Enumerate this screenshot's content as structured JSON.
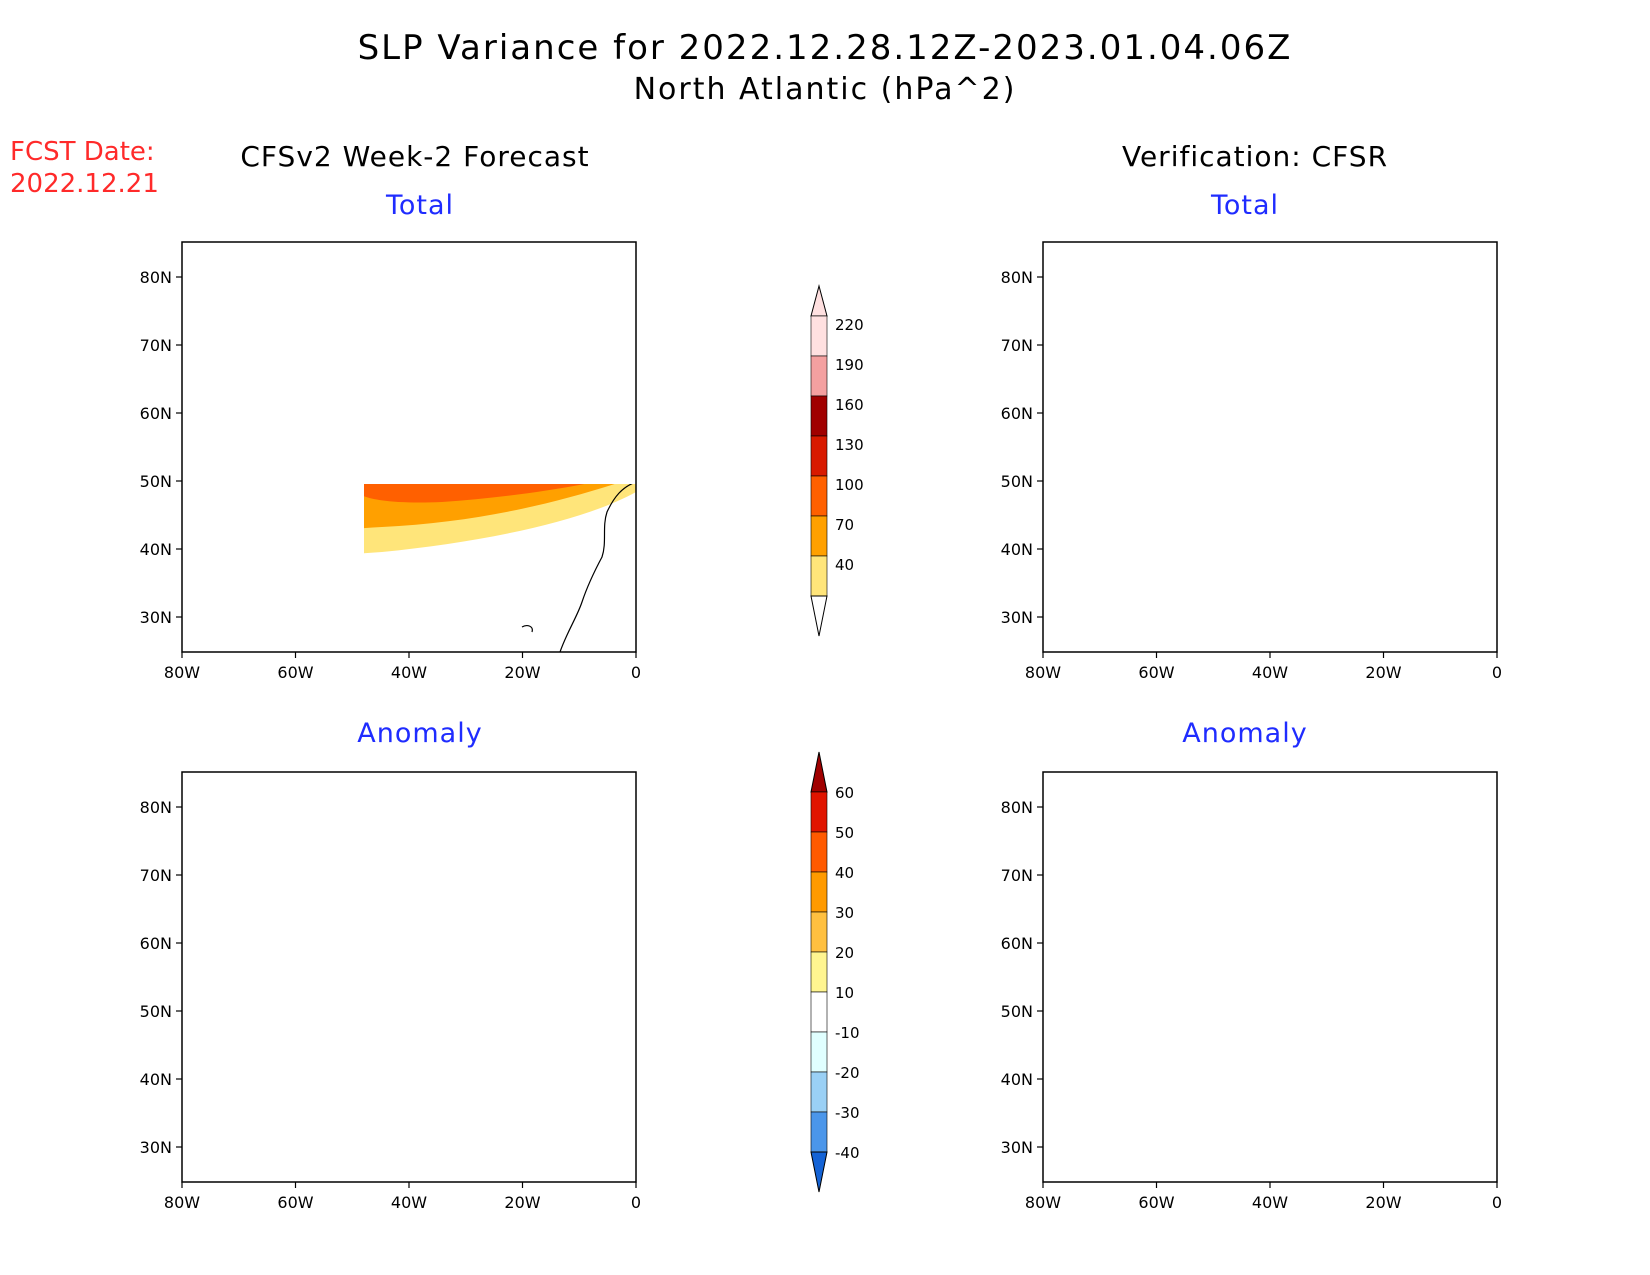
{
  "header": {
    "title": "SLP Variance for 2022.12.28.12Z-2023.01.04.06Z",
    "subtitle": "North Atlantic (hPa^2)"
  },
  "fcst": {
    "label": "FCST Date:",
    "date": "2022.12.21"
  },
  "columns": {
    "left": "CFSv2 Week-2 Forecast",
    "right": "Verification: CFSR"
  },
  "panels": [
    {
      "id": "fcst-total",
      "title": "Total"
    },
    {
      "id": "verif-total",
      "title": "Total"
    },
    {
      "id": "fcst-anom",
      "title": "Anomaly"
    },
    {
      "id": "verif-anom",
      "title": "Anomaly"
    }
  ],
  "axes": {
    "lon_labels": [
      "80W",
      "60W",
      "40W",
      "20W",
      "0"
    ],
    "lat_labels": [
      "80N",
      "70N",
      "60N",
      "50N",
      "40N",
      "30N"
    ]
  },
  "colorbars": {
    "total": {
      "levels": [
        "220",
        "190",
        "160",
        "130",
        "100",
        "70",
        "40"
      ],
      "colors": [
        "#ffe0e0",
        "#f4a0a0",
        "#a00000",
        "#d81a00",
        "#ff6000",
        "#ffa000",
        "#ffe57a"
      ]
    },
    "anomaly": {
      "levels": [
        "60",
        "50",
        "40",
        "30",
        "20",
        "10",
        "-10",
        "-20",
        "-30",
        "-40"
      ],
      "colors": [
        "#a00000",
        "#e01400",
        "#ff5a00",
        "#ff9a00",
        "#ffc040",
        "#fff590",
        "#ffffff",
        "#e0ffff",
        "#9ad0f5",
        "#4b96ea",
        "#1463d6"
      ]
    }
  },
  "colors": {
    "title_red": "#ff2a2a",
    "panel_title_blue": "#1f2cff"
  }
}
